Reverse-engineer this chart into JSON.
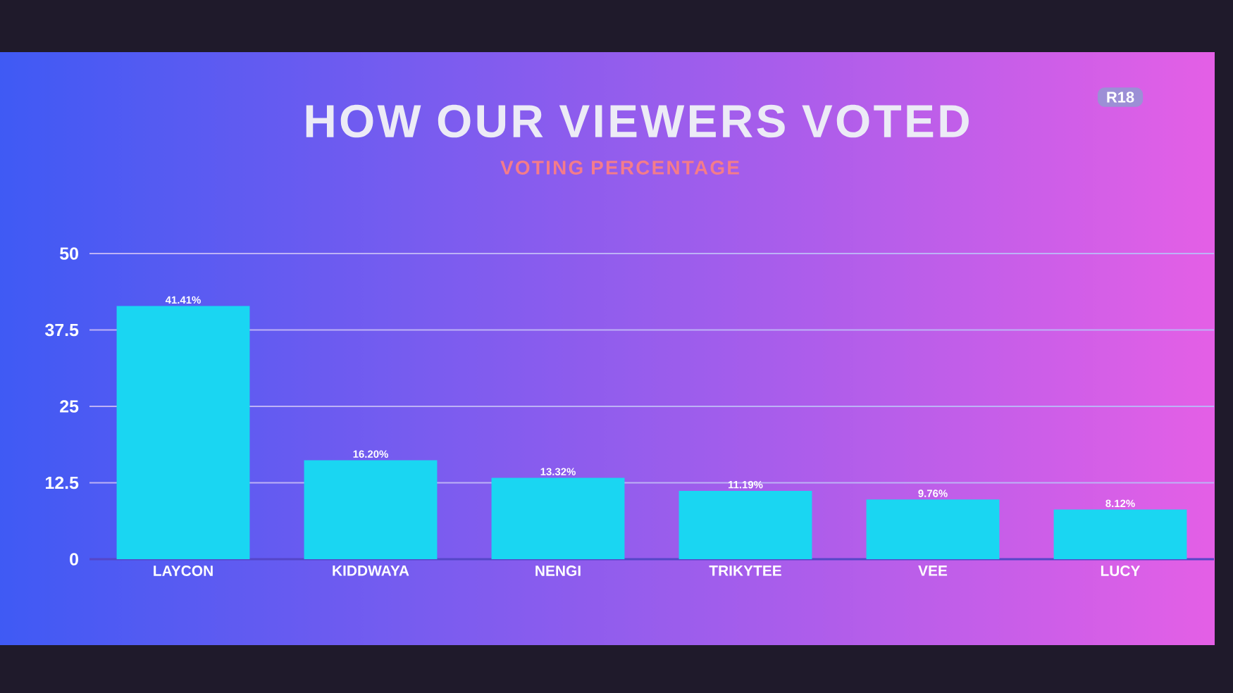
{
  "chart_data": {
    "type": "bar",
    "title": "HOW OUR VIEWERS VOTED",
    "subtitle": "VOTING PERCENTAGE",
    "categories": [
      "LAYCON",
      "KIDDWAYA",
      "NENGI",
      "TRIKYTEE",
      "VEE",
      "LUCY"
    ],
    "values": [
      41.41,
      16.2,
      13.32,
      11.19,
      9.76,
      8.12
    ],
    "value_labels": [
      "41.41%",
      "16.20%",
      "13.32%",
      "11.19%",
      "9.76%",
      "8.12%"
    ],
    "color": "#1ad6f2",
    "ylim": [
      0,
      50
    ],
    "yticks": [
      0,
      12.5,
      25,
      37.5,
      50
    ],
    "grid": "y",
    "annotations": [
      "R18"
    ]
  }
}
